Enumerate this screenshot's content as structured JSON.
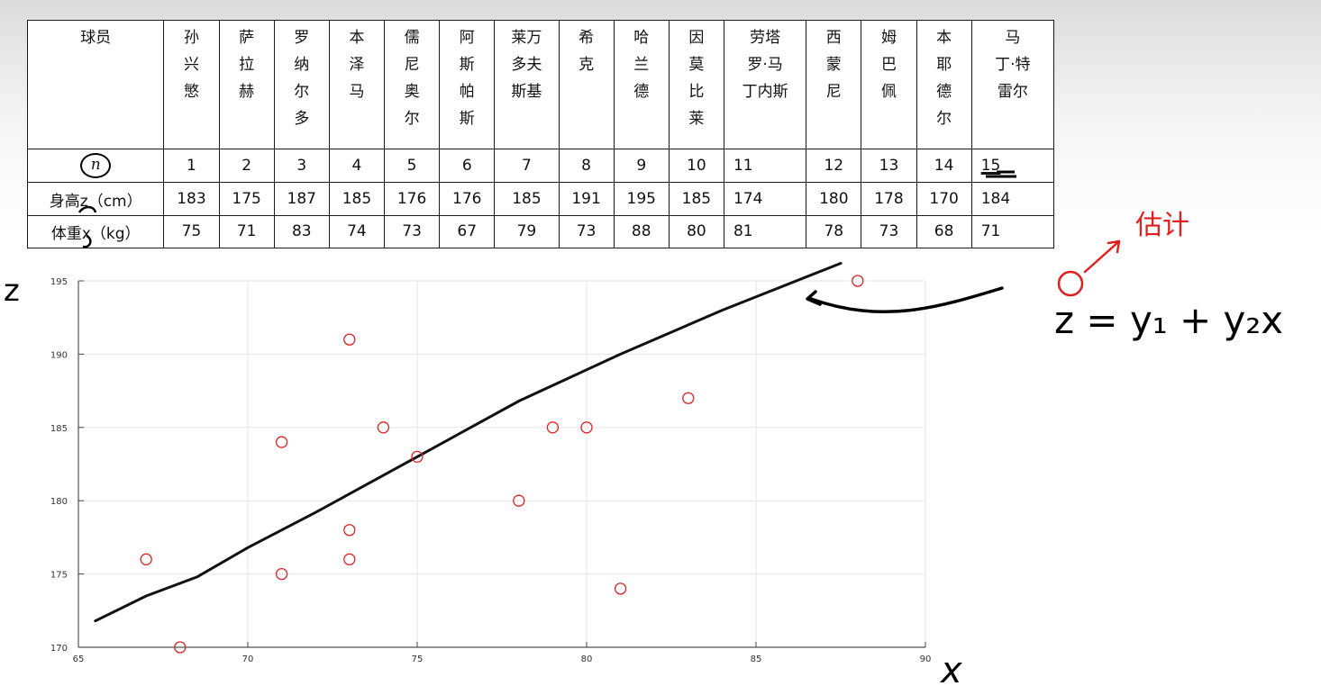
{
  "table": {
    "header_label": "球员",
    "players": [
      [
        "孙",
        "兴",
        "慜"
      ],
      [
        "萨",
        "拉",
        "赫"
      ],
      [
        "罗",
        "纳",
        "尔",
        "多"
      ],
      [
        "本",
        "泽",
        "马"
      ],
      [
        "儒",
        "尼",
        "奥",
        "尔"
      ],
      [
        "阿",
        "斯",
        "帕",
        "斯"
      ],
      [
        "莱万",
        "多夫",
        "斯基"
      ],
      [
        "希",
        "克"
      ],
      [
        "哈",
        "兰",
        "德"
      ],
      [
        "因",
        "莫",
        "比",
        "莱"
      ],
      [
        "劳塔",
        "罗·马",
        "丁内斯"
      ],
      [
        "西",
        "蒙",
        "尼"
      ],
      [
        "姆",
        "巴",
        "佩"
      ],
      [
        "本",
        "耶",
        "德",
        "尔"
      ],
      [
        "马",
        "丁·特",
        "雷尔"
      ]
    ],
    "n_label": "n",
    "n_values": [
      "1",
      "2",
      "3",
      "4",
      "5",
      "6",
      "7",
      "8",
      "9",
      "10",
      "11",
      "12",
      "13",
      "14",
      "15"
    ],
    "height_label": "身高z（cm）",
    "heights": [
      "183",
      "175",
      "187",
      "185",
      "176",
      "176",
      "185",
      "191",
      "195",
      "185",
      "174",
      "180",
      "178",
      "170",
      "184"
    ],
    "weight_label": "体重x（kg）",
    "weights": [
      "75",
      "71",
      "83",
      "74",
      "73",
      "67",
      "79",
      "73",
      "88",
      "80",
      "81",
      "78",
      "73",
      "68",
      "71"
    ]
  },
  "chart_data": {
    "type": "scatter",
    "x": [
      75,
      71,
      83,
      74,
      73,
      67,
      79,
      73,
      88,
      80,
      81,
      78,
      73,
      68,
      71
    ],
    "y": [
      183,
      175,
      187,
      185,
      176,
      176,
      185,
      191,
      195,
      185,
      174,
      180,
      178,
      170,
      184
    ],
    "xlim": [
      65,
      90
    ],
    "ylim": [
      170,
      195
    ],
    "xticks": [
      65,
      70,
      75,
      80,
      85,
      90
    ],
    "yticks": [
      170,
      175,
      180,
      185,
      190,
      195
    ],
    "marker_color": "#e02020",
    "grid": true,
    "fit_line": [
      [
        65.5,
        171.8
      ],
      [
        67,
        173.5
      ],
      [
        68.5,
        174.8
      ],
      [
        70,
        176.8
      ],
      [
        72,
        179.2
      ],
      [
        75,
        183
      ],
      [
        78,
        186.8
      ],
      [
        81,
        190
      ],
      [
        84,
        193
      ],
      [
        87.5,
        196.2
      ]
    ]
  },
  "annotations": {
    "z_axis_label": "z",
    "x_axis_label": "x",
    "estimate_word": "估计",
    "model_equation": "z = y₁ + y₂x"
  }
}
